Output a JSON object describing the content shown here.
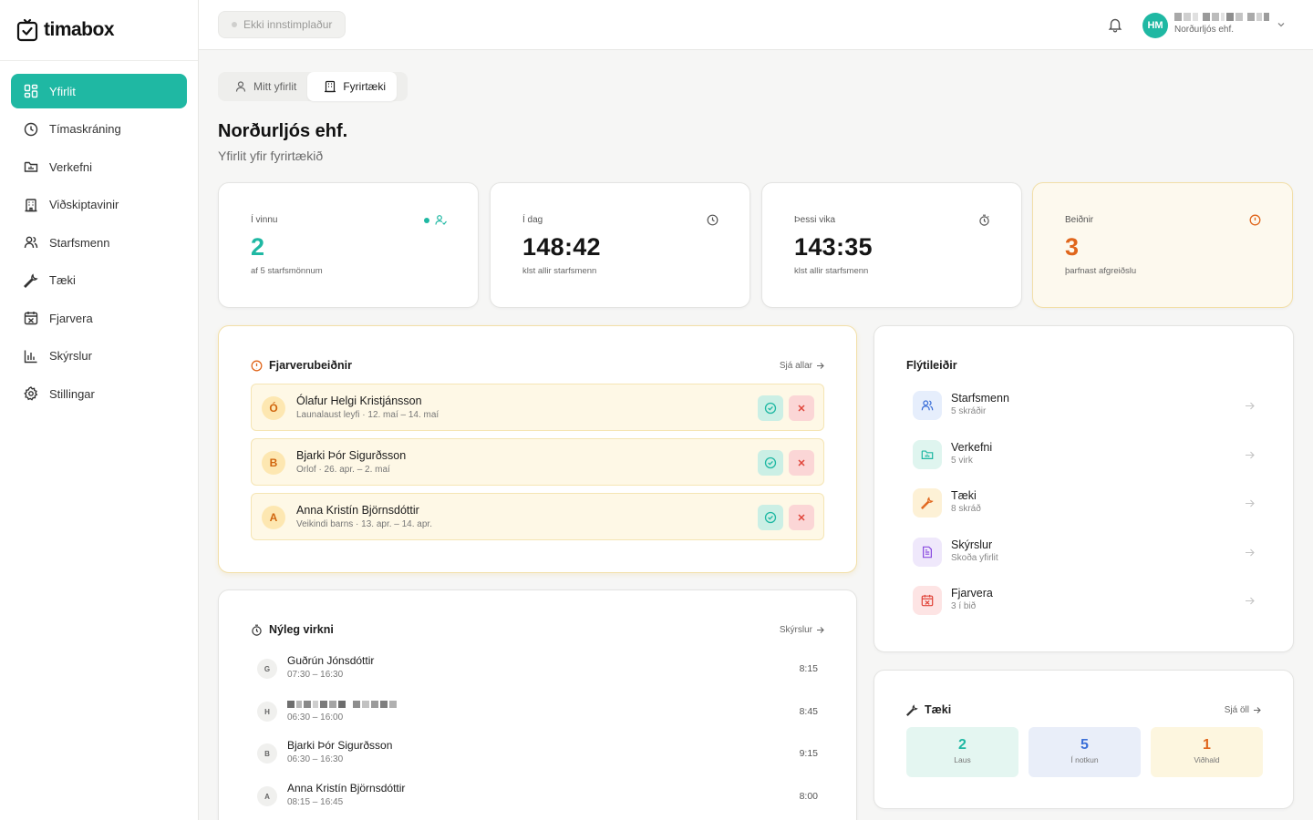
{
  "app": {
    "name": "timabox"
  },
  "sidebar": {
    "items": [
      {
        "label": "Yfirlit",
        "icon": "dashboard-icon",
        "active": true
      },
      {
        "label": "Tímaskráning",
        "icon": "clock-icon"
      },
      {
        "label": "Verkefni",
        "icon": "folder-icon"
      },
      {
        "label": "Viðskiptavinir",
        "icon": "building-icon"
      },
      {
        "label": "Starfsmenn",
        "icon": "users-icon"
      },
      {
        "label": "Tæki",
        "icon": "wrench-icon"
      },
      {
        "label": "Fjarvera",
        "icon": "calendar-off-icon"
      },
      {
        "label": "Skýrslur",
        "icon": "bar-chart-icon"
      },
      {
        "label": "Stillingar",
        "icon": "gear-icon"
      }
    ]
  },
  "topbar": {
    "status": "Ekki innstimplaður",
    "user_initials": "HM",
    "user_company": "Norðurljós ehf."
  },
  "tabs": [
    {
      "label": "Mitt yfirlit",
      "active": false
    },
    {
      "label": "Fyrirtæki",
      "active": true
    }
  ],
  "page": {
    "title": "Norðurljós ehf.",
    "subtitle": "Yfirlit yfir fyrirtækið"
  },
  "stats": [
    {
      "label": "Í vinnu",
      "value": "2",
      "sub": "af 5 starfsmönnum"
    },
    {
      "label": "Í dag",
      "value": "148:42",
      "sub": "klst allir starfsmenn"
    },
    {
      "label": "Þessi vika",
      "value": "143:35",
      "sub": "klst allir starfsmenn"
    },
    {
      "label": "Beiðnir",
      "value": "3",
      "sub": "þarfnast afgreiðslu"
    }
  ],
  "requests": {
    "title": "Fjarverubeiðnir",
    "link": "Sjá allar",
    "items": [
      {
        "initial": "Ó",
        "name": "Ólafur Helgi Kristjánsson",
        "meta": "Launalaust leyfi · 12. maí – 14. maí"
      },
      {
        "initial": "B",
        "name": "Bjarki Þór Sigurðsson",
        "meta": "Orlof · 26. apr. – 2. maí"
      },
      {
        "initial": "A",
        "name": "Anna Kristín Björnsdóttir",
        "meta": "Veikindi barns · 13. apr. – 14. apr."
      }
    ]
  },
  "activity": {
    "title": "Nýleg virkni",
    "link": "Skýrslur",
    "items": [
      {
        "initial": "G",
        "name": "Guðrún Jónsdóttir",
        "time": "07:30 – 16:30",
        "hours": "8:15"
      },
      {
        "initial": "H",
        "name": "",
        "time": "06:30 – 16:00",
        "hours": "8:45"
      },
      {
        "initial": "B",
        "name": "Bjarki Þór Sigurðsson",
        "time": "06:30 – 16:30",
        "hours": "9:15"
      },
      {
        "initial": "A",
        "name": "Anna Kristín Björnsdóttir",
        "time": "08:15 – 16:45",
        "hours": "8:00"
      }
    ]
  },
  "quicklinks": {
    "title": "Flýtileiðir",
    "items": [
      {
        "title": "Starfsmenn",
        "sub": "5 skráðir",
        "icon": "users-icon",
        "bg": "#e6eefc",
        "fg": "#3b6fd8"
      },
      {
        "title": "Verkefni",
        "sub": "5 virk",
        "icon": "folder-icon",
        "bg": "#dff5ef",
        "fg": "#1fb8a3"
      },
      {
        "title": "Tæki",
        "sub": "8 skráð",
        "icon": "wrench-icon",
        "bg": "#fdf1d6",
        "fg": "#e0661c"
      },
      {
        "title": "Skýrslur",
        "sub": "Skoða yfirlit",
        "icon": "report-icon",
        "bg": "#efe8fb",
        "fg": "#8a4ce0"
      },
      {
        "title": "Fjarvera",
        "sub": "3 í bið",
        "icon": "calendar-off-icon",
        "bg": "#fde4e4",
        "fg": "#e0453a"
      }
    ]
  },
  "equipment": {
    "title": "Tæki",
    "link": "Sjá öll",
    "items": [
      {
        "value": "2",
        "label": "Laus",
        "bg": "#e4f6f1",
        "fg": "#1fb8a3"
      },
      {
        "value": "5",
        "label": "Í notkun",
        "bg": "#e9eef9",
        "fg": "#3b6fd8"
      },
      {
        "value": "1",
        "label": "Viðhald",
        "bg": "#fdf6df",
        "fg": "#e0661c"
      }
    ]
  }
}
